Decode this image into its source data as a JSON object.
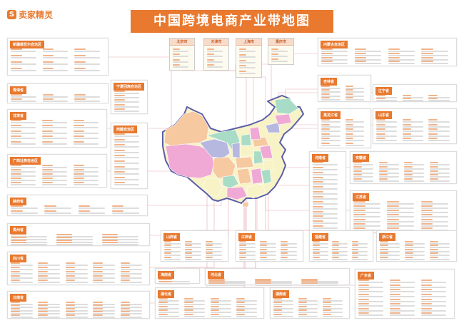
{
  "header": {
    "logo_text": "卖家精灵",
    "logo_icon": "S",
    "title": "中国跨境电商产业带地图"
  },
  "colors": {
    "accent": "#e8792f",
    "connector": "#e9a9b4",
    "map_border": "#5b5fa8"
  },
  "cities": [
    {
      "name": "北京市"
    },
    {
      "name": "天津市"
    },
    {
      "name": "上海市"
    },
    {
      "name": "重庆市"
    }
  ],
  "provinces": [
    {
      "name": "新疆维吾尔自治区"
    },
    {
      "name": "青海省"
    },
    {
      "name": "宁夏回族自治区"
    },
    {
      "name": "甘肃省"
    },
    {
      "name": "西藏自治区"
    },
    {
      "name": "广西壮族自治区"
    },
    {
      "name": "陕西省"
    },
    {
      "name": "贵州省"
    },
    {
      "name": "四川省"
    },
    {
      "name": "云南省"
    },
    {
      "name": "内蒙古自治区"
    },
    {
      "name": "吉林省"
    },
    {
      "name": "辽宁省"
    },
    {
      "name": "黑龙江省"
    },
    {
      "name": "山东省"
    },
    {
      "name": "河南省"
    },
    {
      "name": "安徽省"
    },
    {
      "name": "江苏省"
    },
    {
      "name": "山西省"
    },
    {
      "name": "江西省"
    },
    {
      "name": "福建省"
    },
    {
      "name": "浙江省"
    },
    {
      "name": "海南省"
    },
    {
      "name": "河北省"
    },
    {
      "name": "湖北省"
    },
    {
      "name": "湖南省"
    },
    {
      "name": "广东省"
    }
  ]
}
